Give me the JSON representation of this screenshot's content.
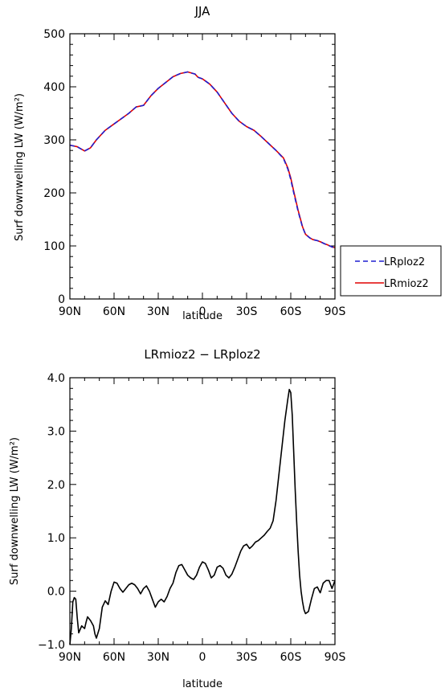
{
  "chart_data": [
    {
      "type": "line",
      "title": "JJA",
      "xlabel": "latitude",
      "ylabel": "Surf downwelling LW (W/m²)",
      "xlim": [
        90,
        -90
      ],
      "ylim": [
        0,
        500
      ],
      "x_ticks": [
        90,
        60,
        30,
        0,
        -30,
        -60,
        -90
      ],
      "x_tick_labels": [
        "90N",
        "60N",
        "30N",
        "0",
        "30S",
        "60S",
        "90S"
      ],
      "y_ticks": [
        0,
        100,
        200,
        300,
        400,
        500
      ],
      "y_tick_labels": [
        "0",
        "100",
        "200",
        "300",
        "400",
        "500"
      ],
      "legend_position": "right",
      "series": [
        {
          "name": "LRploz2",
          "color": "#1f1fd0",
          "dash": "dashed",
          "x": [
            90,
            85,
            80,
            76,
            72,
            66,
            60,
            55,
            50,
            45,
            40,
            35,
            30,
            25,
            20,
            15,
            10,
            5,
            3,
            0,
            -5,
            -10,
            -15,
            -20,
            -25,
            -30,
            -35,
            -40,
            -45,
            -50,
            -55,
            -58,
            -60,
            -62,
            -65,
            -68,
            -70,
            -73,
            -75,
            -78,
            -80,
            -83,
            -85,
            -88,
            -90
          ],
          "y": [
            290,
            287,
            279,
            285,
            300,
            318,
            330,
            340,
            350,
            362,
            365,
            383,
            397,
            408,
            419,
            425,
            428,
            424,
            418,
            415,
            405,
            390,
            370,
            350,
            335,
            325,
            318,
            306,
            293,
            280,
            265,
            245,
            225,
            200,
            165,
            135,
            122,
            115,
            112,
            110,
            108,
            104,
            102,
            98,
            97
          ]
        },
        {
          "name": "LRmioz2",
          "color": "#e00000",
          "dash": "solid",
          "x": [
            90,
            85,
            80,
            76,
            72,
            66,
            60,
            55,
            50,
            45,
            40,
            35,
            30,
            25,
            20,
            15,
            10,
            5,
            3,
            0,
            -5,
            -10,
            -15,
            -20,
            -25,
            -30,
            -35,
            -40,
            -45,
            -50,
            -55,
            -58,
            -60,
            -62,
            -65,
            -68,
            -70,
            -73,
            -75,
            -78,
            -80,
            -83,
            -85,
            -88,
            -90
          ],
          "y": [
            290,
            287,
            279,
            285,
            300,
            318,
            330,
            340,
            350,
            362,
            365,
            383,
            397,
            408,
            419,
            425,
            428,
            424,
            418,
            415,
            405,
            390,
            370,
            350,
            335,
            325,
            318,
            306,
            293,
            280,
            266,
            247,
            228,
            203,
            167,
            136,
            122,
            115,
            112,
            110,
            108,
            104,
            102,
            98,
            97
          ]
        }
      ]
    },
    {
      "type": "line",
      "title": "LRmioz2 − LRploz2",
      "xlabel": "latitude",
      "ylabel": "Surf downwelling LW (W/m²)",
      "xlim": [
        90,
        -90
      ],
      "ylim": [
        -1.0,
        4.0
      ],
      "x_ticks": [
        90,
        60,
        30,
        0,
        -30,
        -60,
        -90
      ],
      "x_tick_labels": [
        "90N",
        "60N",
        "30N",
        "0",
        "30S",
        "60S",
        "90S"
      ],
      "y_ticks": [
        -1.0,
        0.0,
        1.0,
        2.0,
        3.0,
        4.0
      ],
      "y_tick_labels": [
        "−1.0",
        "0.0",
        "1.0",
        "2.0",
        "3.0",
        "4.0"
      ],
      "series": [
        {
          "color": "#000000",
          "x": [
            90,
            89,
            88,
            87,
            86,
            85,
            84,
            82,
            80,
            79,
            78,
            76,
            74,
            73,
            72,
            70,
            68,
            66,
            64,
            62,
            60,
            58,
            56,
            54,
            52,
            50,
            48,
            46,
            44,
            42,
            40,
            38,
            36,
            34,
            32,
            30,
            28,
            26,
            24,
            22,
            20,
            18,
            16,
            14,
            12,
            10,
            8,
            6,
            4,
            2,
            0,
            -2,
            -4,
            -6,
            -8,
            -10,
            -12,
            -14,
            -16,
            -18,
            -20,
            -22,
            -24,
            -26,
            -28,
            -30,
            -32,
            -34,
            -36,
            -38,
            -40,
            -42,
            -44,
            -46,
            -48,
            -50,
            -52,
            -54,
            -56,
            -58,
            -59,
            -60,
            -61,
            -62,
            -63,
            -64,
            -65,
            -66,
            -67,
            -68,
            -69,
            -70,
            -72,
            -74,
            -76,
            -78,
            -80,
            -82,
            -84,
            -86,
            -88,
            -90
          ],
          "y": [
            -1.0,
            -0.7,
            -0.2,
            -0.12,
            -0.15,
            -0.5,
            -0.78,
            -0.65,
            -0.7,
            -0.58,
            -0.48,
            -0.55,
            -0.65,
            -0.8,
            -0.88,
            -0.7,
            -0.3,
            -0.18,
            -0.25,
            0.0,
            0.17,
            0.15,
            0.05,
            -0.02,
            0.05,
            0.12,
            0.15,
            0.12,
            0.05,
            -0.05,
            0.05,
            0.1,
            0.0,
            -0.15,
            -0.3,
            -0.2,
            -0.15,
            -0.2,
            -0.1,
            0.05,
            0.15,
            0.35,
            0.48,
            0.5,
            0.4,
            0.3,
            0.25,
            0.22,
            0.3,
            0.45,
            0.55,
            0.52,
            0.4,
            0.25,
            0.3,
            0.45,
            0.48,
            0.43,
            0.3,
            0.25,
            0.32,
            0.45,
            0.6,
            0.75,
            0.85,
            0.88,
            0.8,
            0.85,
            0.92,
            0.95,
            1.0,
            1.05,
            1.12,
            1.18,
            1.32,
            1.7,
            2.2,
            2.7,
            3.2,
            3.6,
            3.78,
            3.72,
            3.3,
            2.6,
            1.9,
            1.3,
            0.75,
            0.3,
            0.0,
            -0.2,
            -0.35,
            -0.42,
            -0.38,
            -0.15,
            0.05,
            0.08,
            -0.03,
            0.15,
            0.2,
            0.2,
            0.05,
            0.2
          ]
        }
      ]
    }
  ]
}
